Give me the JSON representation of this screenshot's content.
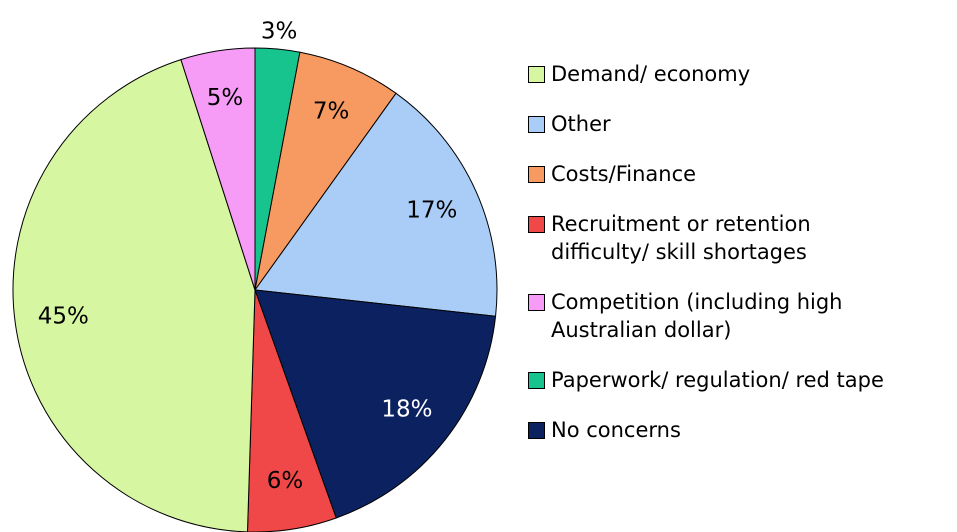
{
  "chart_data": {
    "type": "pie",
    "categories": [
      "Paperwork/ regulation/ red tape",
      "Costs/Finance",
      "Other",
      "No concerns",
      "Recruitment or retention difficulty/ skill shortages",
      "Demand/ economy",
      "Competition (including high Australian dollar)"
    ],
    "values": [
      3,
      7,
      17,
      18,
      6,
      45,
      5
    ],
    "value_labels": [
      "3%",
      "7%",
      "17%",
      "18%",
      "6%",
      "45%",
      "5%"
    ],
    "colors": [
      "#17c48e",
      "#f79a62",
      "#a9cdf6",
      "#0c2260",
      "#f04848",
      "#d7f6a2",
      "#f79cf6"
    ],
    "legend": "right"
  }
}
